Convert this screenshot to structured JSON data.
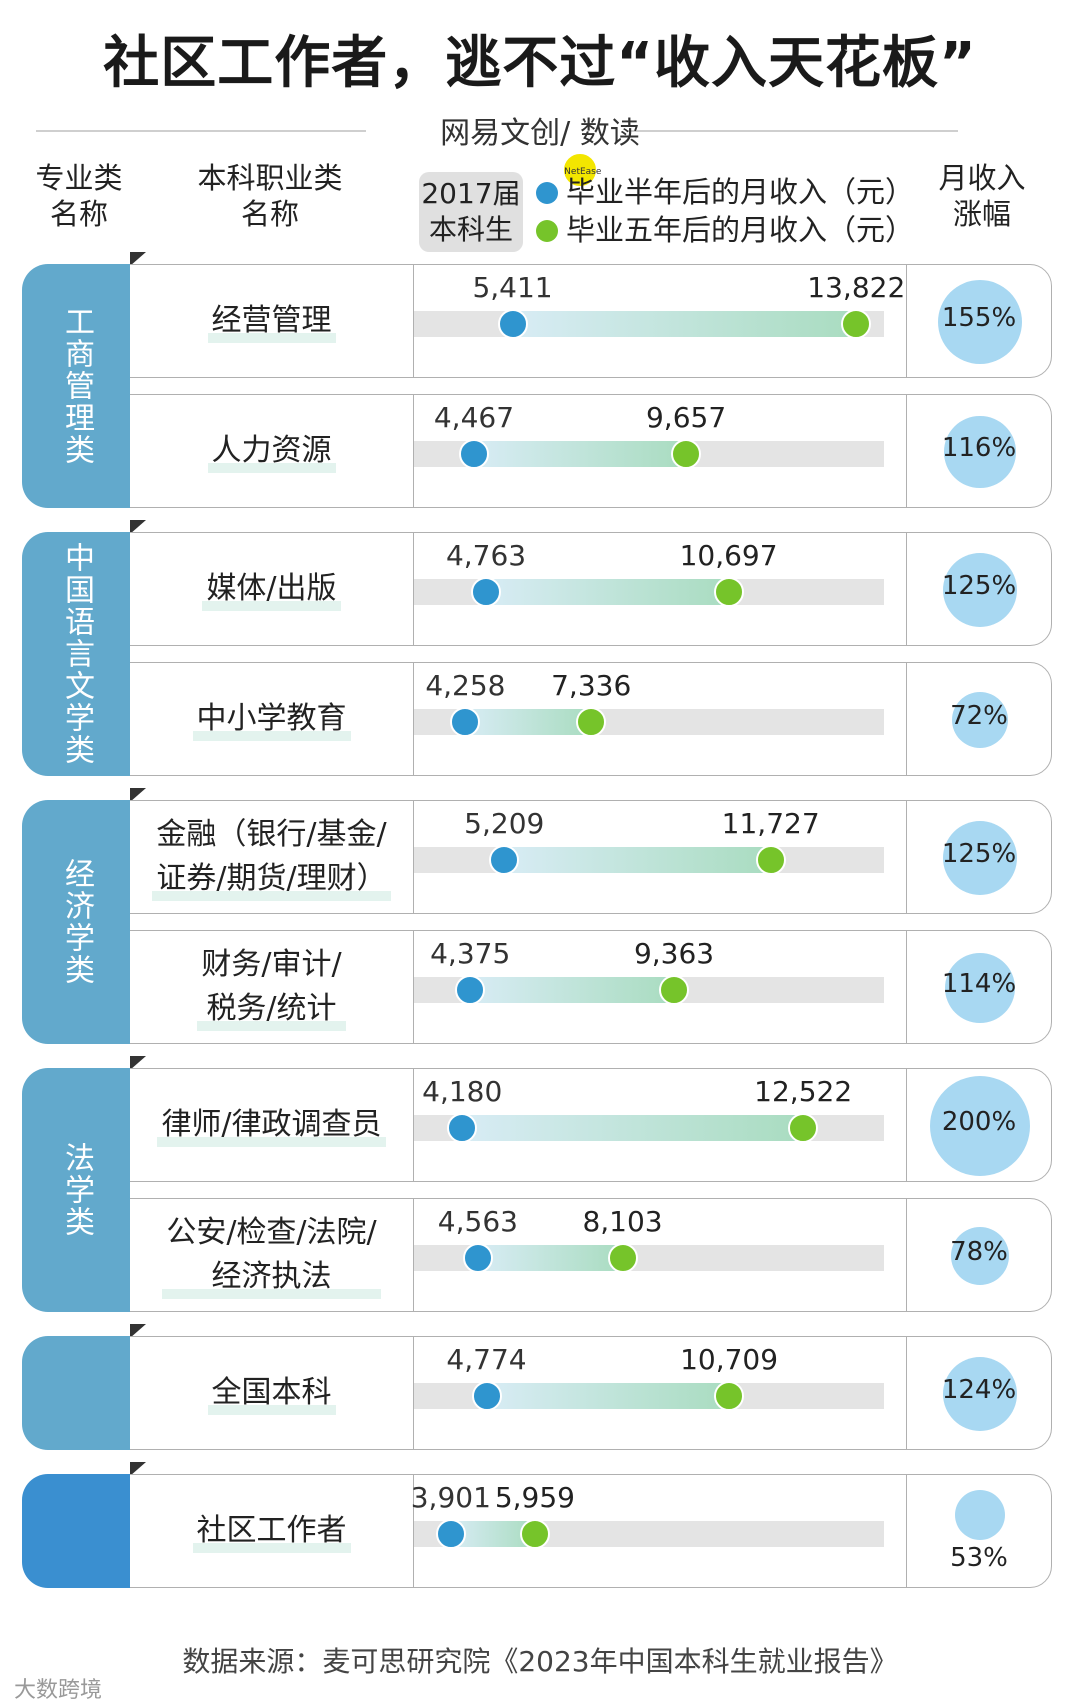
{
  "title": "社区工作者，逃不过“收入天花板”",
  "brand": {
    "left": "网易文创",
    "badge": "NetEase",
    "right": "/ 数读"
  },
  "headers": {
    "major_line1": "专业类",
    "major_line2": "名称",
    "job_line1": "本科职业类",
    "job_line2": "名称",
    "cohort_line1": "2017届",
    "cohort_line2": "本科生",
    "growth_line1": "月收入",
    "growth_line2": "涨幅"
  },
  "colors": {
    "half_year": "#2f95cf",
    "five_year": "#76c42a",
    "group": "#62a9cc",
    "community": "#3a8fd0"
  },
  "chart_data": {
    "type": "dumbbell",
    "series": [
      {
        "name": "毕业半年后的月收入（元）",
        "key": "half"
      },
      {
        "name": "毕业五年后的月收入（元）",
        "key": "five"
      }
    ],
    "groups": [
      {
        "label": "工商管理类",
        "rows": [
          {
            "name": "经营管理",
            "half": 5411,
            "half_label": "5,411",
            "five": 13822,
            "five_label": "13,822",
            "growth": "155%",
            "growth_value": 155
          },
          {
            "name": "人力资源",
            "half": 4467,
            "half_label": "4,467",
            "five": 9657,
            "five_label": "9,657",
            "growth": "116%",
            "growth_value": 116
          }
        ]
      },
      {
        "label": "中国语言文学类",
        "rows": [
          {
            "name": "媒体/出版",
            "half": 4763,
            "half_label": "4,763",
            "five": 10697,
            "five_label": "10,697",
            "growth": "125%",
            "growth_value": 125
          },
          {
            "name": "中小学教育",
            "half": 4258,
            "half_label": "4,258",
            "five": 7336,
            "five_label": "7,336",
            "growth": "72%",
            "growth_value": 72
          }
        ]
      },
      {
        "label": "经济学类",
        "rows": [
          {
            "name": "金融（银行/基金/证券/期货/理财）",
            "half": 5209,
            "half_label": "5,209",
            "five": 11727,
            "five_label": "11,727",
            "growth": "125%",
            "growth_value": 125
          },
          {
            "name": "财务/审计/税务/统计",
            "half": 4375,
            "half_label": "4,375",
            "five": 9363,
            "five_label": "9,363",
            "growth": "114%",
            "growth_value": 114
          }
        ]
      },
      {
        "label": "法学类",
        "rows": [
          {
            "name": "律师/律政调查员",
            "half": 4180,
            "half_label": "4,180",
            "five": 12522,
            "five_label": "12,522",
            "growth": "200%",
            "growth_value": 200
          },
          {
            "name": "公安/检查/法院/经济执法",
            "half": 4563,
            "half_label": "4,563",
            "five": 8103,
            "five_label": "8,103",
            "growth": "78%",
            "growth_value": 78
          }
        ]
      },
      {
        "label": "",
        "rows": [
          {
            "name": "全国本科",
            "half": 4774,
            "half_label": "4,774",
            "five": 10709,
            "five_label": "10,709",
            "growth": "124%",
            "growth_value": 124
          }
        ]
      },
      {
        "label": "",
        "highlight": true,
        "rows": [
          {
            "name": "社区工作者",
            "half": 3901,
            "half_label": "3,901",
            "five": 5959,
            "five_label": "5,959",
            "growth": "53%",
            "growth_value": 53
          }
        ]
      }
    ]
  },
  "source": "数据来源：麦可思研究院《2023年中国本科生就业报告》",
  "watermark": "大数跨境"
}
